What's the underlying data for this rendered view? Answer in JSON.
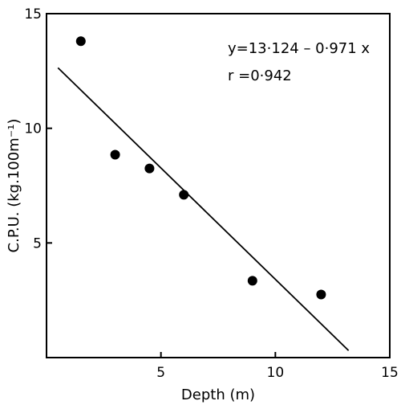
{
  "chart_data": {
    "type": "scatter",
    "title": "",
    "xlabel": "Depth (m)",
    "ylabel": "C.P.U. (kg.100m⁻¹)",
    "xlim": [
      0,
      15
    ],
    "ylim": [
      0,
      15
    ],
    "x_ticks": [
      "5",
      "10",
      "15"
    ],
    "y_ticks": [
      "5",
      "10",
      "15"
    ],
    "grid": false,
    "legend": "none",
    "series": [
      {
        "x": [
          1.5,
          3.0,
          4.5,
          6.0,
          9.0,
          12.0
        ],
        "y": [
          13.8,
          8.85,
          8.25,
          7.1,
          3.35,
          2.75
        ]
      }
    ],
    "fit_line": {
      "slope": -0.971,
      "intercept": 13.124,
      "x_range": [
        0.5,
        13.2
      ]
    },
    "annotations": {
      "equation": "y=13·124 – 0·971 x",
      "r_value": "r =0·942"
    },
    "colors": {
      "axis": "#000000",
      "marker": "#000000",
      "line": "#000000"
    }
  }
}
